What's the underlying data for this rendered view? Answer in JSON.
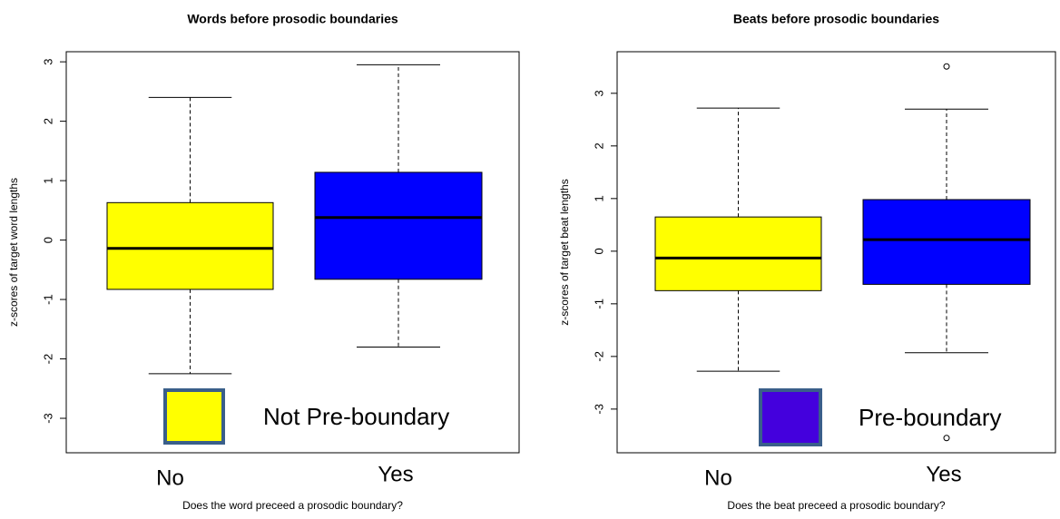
{
  "chart_data": [
    {
      "type": "box",
      "title": "Words before prosodic boundaries",
      "x_label": "Does the word preceed a prosodic boundary?",
      "y_label": "z-scores of target word lengths",
      "categories": [
        "No",
        "Yes"
      ],
      "colors": [
        "#ffff00",
        "#0000ff"
      ],
      "boxes": [
        {
          "min": -2.25,
          "q1": -0.83,
          "median": -0.14,
          "q3": 0.63,
          "max": 2.4,
          "outliers": []
        },
        {
          "min": -1.8,
          "q1": -0.66,
          "median": 0.38,
          "q3": 1.14,
          "max": 2.95,
          "outliers": []
        }
      ],
      "ylim": [
        -3.58,
        3.17
      ],
      "yticks": [
        -3,
        -2,
        -1,
        0,
        1,
        2,
        3
      ],
      "legend": {
        "label": "Not Pre-boundary",
        "color": "#ffff00"
      }
    },
    {
      "type": "box",
      "title": "Beats before prosodic boundaries",
      "x_label": "Does the beat preceed a prosodic boundary?",
      "y_label": "z-scores of target beat lengths",
      "categories": [
        "No",
        "Yes"
      ],
      "colors": [
        "#ffff00",
        "#0000ff"
      ],
      "boxes": [
        {
          "min": -2.28,
          "q1": -0.75,
          "median": -0.13,
          "q3": 0.65,
          "max": 2.72,
          "outliers": []
        },
        {
          "min": -1.93,
          "q1": -0.63,
          "median": 0.22,
          "q3": 0.98,
          "max": 2.7,
          "outliers": [
            3.51,
            -3.55
          ]
        }
      ],
      "ylim": [
        -3.83,
        3.79
      ],
      "yticks": [
        -3,
        -2,
        -1,
        0,
        1,
        2,
        3
      ],
      "legend": {
        "label": "Pre-boundary",
        "color": "#4400dd"
      }
    }
  ]
}
